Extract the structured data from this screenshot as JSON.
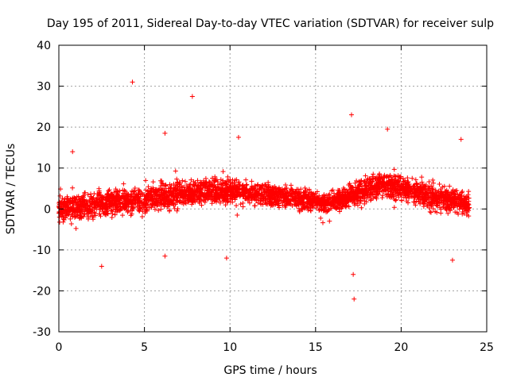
{
  "chart_data": {
    "type": "scatter",
    "title": "Day 195 of 2011, Sidereal Day-to-day VTEC variation (SDTVAR) for receiver sulp",
    "xlabel": "GPS time / hours",
    "ylabel": "SDTVAR / TECUs",
    "xlim": [
      0,
      25
    ],
    "ylim": [
      -30,
      40
    ],
    "xticks": [
      0,
      5,
      10,
      15,
      20,
      25
    ],
    "yticks": [
      -30,
      -20,
      -10,
      0,
      10,
      20,
      30,
      40
    ],
    "grid": true,
    "marker": "+",
    "color": "#ff0000",
    "series": [
      {
        "name": "SDTVAR",
        "data_extent_hours": [
          0,
          24
        ],
        "envelope": {
          "hours": [
            0,
            1,
            2,
            3,
            4,
            5,
            6,
            7,
            8,
            9,
            10,
            11,
            12,
            13,
            14,
            15,
            15.5,
            16,
            17,
            18,
            19,
            20,
            21,
            22,
            23,
            24
          ],
          "center": [
            0,
            0.5,
            1,
            1.5,
            2,
            2.5,
            3,
            3.5,
            4,
            4.5,
            4.5,
            4,
            3.5,
            3,
            2.5,
            2,
            1.5,
            2,
            3,
            5,
            6,
            5,
            4,
            3,
            2,
            1
          ],
          "upper": [
            7,
            8,
            9,
            10,
            11,
            11,
            12,
            12,
            12,
            13,
            12,
            11,
            10,
            9,
            9,
            8,
            7,
            8,
            10,
            13,
            14,
            13,
            12,
            11,
            9,
            8
          ],
          "lower": [
            -8,
            -8,
            -8,
            -7,
            -6,
            -5,
            -5,
            -4,
            -3,
            -3,
            -3,
            -3,
            -3,
            -4,
            -4,
            -5,
            -5,
            -4,
            -4,
            -2,
            -1,
            -2,
            -3,
            -4,
            -6,
            -6
          ]
        },
        "outliers": [
          {
            "x": 4.3,
            "y": 31
          },
          {
            "x": 7.8,
            "y": 27.5
          },
          {
            "x": 17.1,
            "y": 23
          },
          {
            "x": 17.2,
            "y": -16
          },
          {
            "x": 17.25,
            "y": -22
          },
          {
            "x": 19.2,
            "y": 19.5
          },
          {
            "x": 6.2,
            "y": 18.5
          },
          {
            "x": 10.5,
            "y": 17.5
          },
          {
            "x": 0.8,
            "y": 14
          },
          {
            "x": 9.8,
            "y": -12
          },
          {
            "x": 6.2,
            "y": -11.5
          },
          {
            "x": 23.0,
            "y": -12.5
          },
          {
            "x": 23.5,
            "y": 17
          },
          {
            "x": 2.5,
            "y": -14
          }
        ]
      }
    ]
  }
}
